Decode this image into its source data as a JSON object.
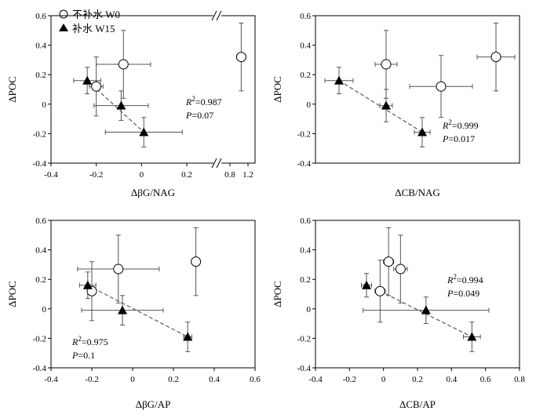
{
  "legend": {
    "open_label": "不补水 W0",
    "filled_label": "补水 W15"
  },
  "colors": {
    "axis": "#000000",
    "error_bar": "#555555",
    "trend": "#666666"
  },
  "chart_data": [
    {
      "id": "p1",
      "type": "scatter",
      "xlabel": "ΔβG/NAG",
      "ylabel": "ΔPOC",
      "xlim": [
        -0.4,
        1.2
      ],
      "ylim": [
        -0.4,
        0.6
      ],
      "xticks": [
        "-0.4",
        "-0.2",
        "0",
        "0.2",
        "0.8",
        "1.2"
      ],
      "yticks": [
        "-0.4",
        "-0.2",
        "0",
        "0.2",
        "0.4",
        "0.6"
      ],
      "axis_break": "between 0.2 and 0.8",
      "stats": {
        "r2": "=0.987",
        "p": "=0.07"
      },
      "series": [
        {
          "name": "不补水 W0",
          "marker": "open-circle",
          "points": [
            {
              "x": -0.2,
              "y": 0.12,
              "xerr": 0.03,
              "yerr": 0.2
            },
            {
              "x": -0.08,
              "y": 0.27,
              "xerr": 0.12,
              "yerr": 0.23
            },
            {
              "x": 1.05,
              "y": 0.32,
              "xerr": 0.1,
              "yerr": 0.23
            }
          ]
        },
        {
          "name": "补水 W15",
          "marker": "filled-triangle",
          "points": [
            {
              "x": -0.24,
              "y": 0.16,
              "xerr": 0.06,
              "yerr": 0.09
            },
            {
              "x": -0.09,
              "y": -0.01,
              "xerr": 0.12,
              "yerr": 0.1
            },
            {
              "x": 0.01,
              "y": -0.19,
              "xerr": 0.17,
              "yerr": 0.1
            }
          ]
        }
      ],
      "trendline": [
        [
          -0.24,
          0.16
        ],
        [
          0.01,
          -0.19
        ]
      ]
    },
    {
      "id": "p2",
      "type": "scatter",
      "xlabel": "ΔCB/NAG",
      "ylabel": "ΔPOC",
      "ylim": [
        -0.4,
        0.6
      ],
      "yticks": [
        "-0.4",
        "-0.2",
        "0",
        "0.2",
        "0.4",
        "0.6"
      ],
      "stats": {
        "r2": "=0.999",
        "p": "=0.017"
      },
      "series": [
        {
          "name": "不补水 W0",
          "marker": "open-circle",
          "points": [
            {
              "x": 0.15,
              "y": 0.27,
              "xerr": 0.07,
              "yerr": 0.23
            },
            {
              "x": 0.5,
              "y": 0.12,
              "xerr": 0.2,
              "yerr": 0.21
            },
            {
              "x": 0.85,
              "y": 0.32,
              "xerr": 0.12,
              "yerr": 0.23
            }
          ]
        },
        {
          "name": "补水 W15",
          "marker": "filled-triangle",
          "points": [
            {
              "x": -0.15,
              "y": 0.16,
              "xerr": 0.09,
              "yerr": 0.09
            },
            {
              "x": 0.15,
              "y": -0.01,
              "xerr": 0.04,
              "yerr": 0.11
            },
            {
              "x": 0.38,
              "y": -0.19,
              "xerr": 0.05,
              "yerr": 0.1
            }
          ]
        }
      ],
      "trendline": [
        [
          -0.15,
          0.16
        ],
        [
          0.38,
          -0.19
        ]
      ]
    },
    {
      "id": "p3",
      "type": "scatter",
      "xlabel": "ΔβG/AP",
      "ylabel": "ΔPOC",
      "xlim": [
        -0.4,
        0.6
      ],
      "ylim": [
        -0.4,
        0.6
      ],
      "xticks": [
        "-0.4",
        "-0.2",
        "0",
        "0.2",
        "0.4",
        "0.6"
      ],
      "yticks": [
        "-0.4",
        "-0.2",
        "0",
        "0.2",
        "0.4",
        "0.6"
      ],
      "stats": {
        "r2": "=0.975",
        "p": "=0.1"
      },
      "series": [
        {
          "name": "不补水 W0",
          "marker": "open-circle",
          "points": [
            {
              "x": -0.2,
              "y": 0.12,
              "xerr": 0.02,
              "yerr": 0.2
            },
            {
              "x": -0.07,
              "y": 0.27,
              "xerr": 0.2,
              "yerr": 0.23
            },
            {
              "x": 0.31,
              "y": 0.32,
              "xerr": 0.02,
              "yerr": 0.23
            }
          ]
        },
        {
          "name": "补水 W15",
          "marker": "filled-triangle",
          "points": [
            {
              "x": -0.22,
              "y": 0.16,
              "xerr": 0.04,
              "yerr": 0.09
            },
            {
              "x": -0.05,
              "y": -0.01,
              "xerr": 0.2,
              "yerr": 0.1
            },
            {
              "x": 0.27,
              "y": -0.19,
              "xerr": 0.02,
              "yerr": 0.1
            }
          ]
        }
      ],
      "trendline": [
        [
          -0.22,
          0.16
        ],
        [
          0.27,
          -0.19
        ]
      ]
    },
    {
      "id": "p4",
      "type": "scatter",
      "xlabel": "ΔCB/AP",
      "ylabel": "ΔPOC",
      "xlim": [
        -0.4,
        0.8
      ],
      "ylim": [
        -0.4,
        0.6
      ],
      "xticks": [
        "-0.4",
        "-0.2",
        "0",
        "0.2",
        "0.4",
        "0.6",
        "0.8"
      ],
      "yticks": [
        "-0.4",
        "-0.2",
        "0",
        "0.2",
        "0.4",
        "0.6"
      ],
      "stats": {
        "r2": "=0.994",
        "p": "=0.049"
      },
      "series": [
        {
          "name": "不补水 W0",
          "marker": "open-circle",
          "points": [
            {
              "x": -0.02,
              "y": 0.12,
              "xerr": 0.03,
              "yerr": 0.21
            },
            {
              "x": 0.03,
              "y": 0.32,
              "xerr": 0.03,
              "yerr": 0.23
            },
            {
              "x": 0.1,
              "y": 0.27,
              "xerr": 0.04,
              "yerr": 0.23
            }
          ]
        },
        {
          "name": "补水 W15",
          "marker": "filled-triangle",
          "points": [
            {
              "x": -0.1,
              "y": 0.16,
              "xerr": 0.03,
              "yerr": 0.08
            },
            {
              "x": 0.25,
              "y": -0.01,
              "xerr": 0.37,
              "yerr": 0.09
            },
            {
              "x": 0.52,
              "y": -0.19,
              "xerr": 0.05,
              "yerr": 0.1
            }
          ]
        }
      ],
      "trendline": [
        [
          -0.02,
          0.12
        ],
        [
          0.52,
          -0.19
        ]
      ]
    }
  ]
}
